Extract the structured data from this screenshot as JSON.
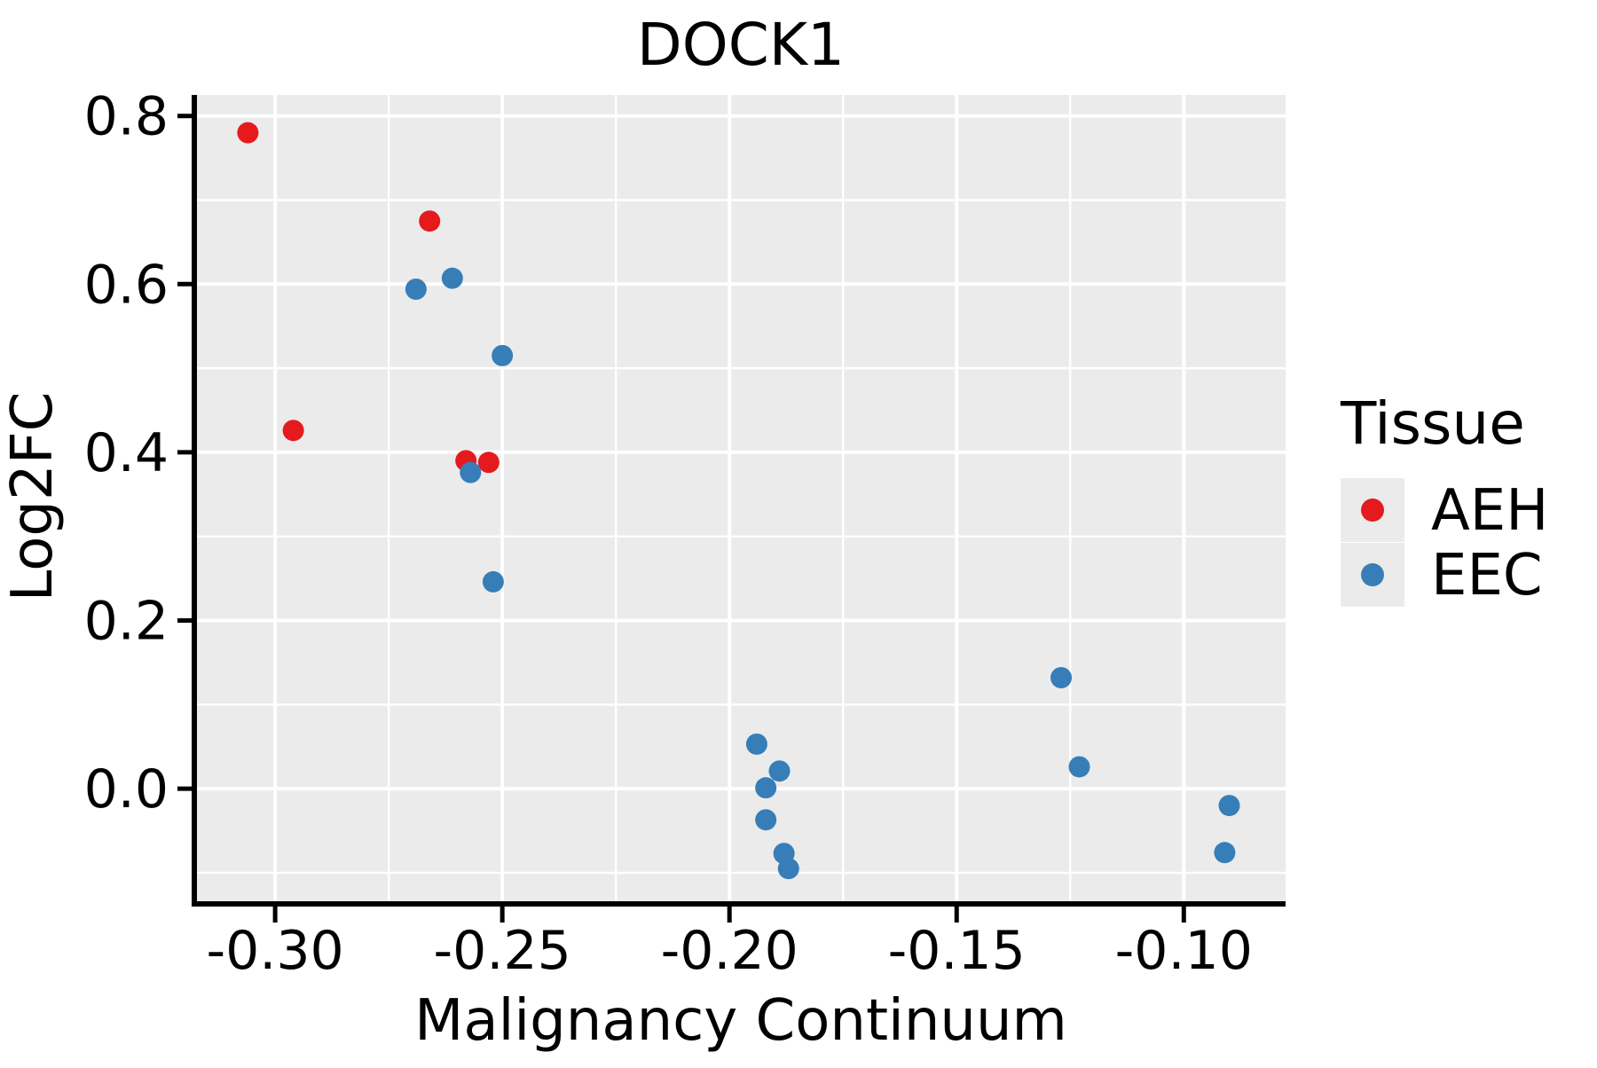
{
  "chart_data": {
    "type": "scatter",
    "title": "DOCK1",
    "xlabel": "Malignancy Continuum",
    "ylabel": "Log2FC",
    "xlim": [
      -0.3174,
      -0.0776
    ],
    "ylim": [
      -0.137,
      0.825
    ],
    "x_ticks": [
      -0.3,
      -0.25,
      -0.2,
      -0.15,
      -0.1
    ],
    "x_tick_labels": [
      "-0.30",
      "-0.25",
      "-0.20",
      "-0.15",
      "-0.10"
    ],
    "y_ticks": [
      0.0,
      0.2,
      0.4,
      0.6,
      0.8
    ],
    "y_tick_labels": [
      "0.0",
      "0.2",
      "0.4",
      "0.6",
      "0.8"
    ],
    "x_minor_ticks": [
      -0.275,
      -0.225,
      -0.175,
      -0.125
    ],
    "y_minor_ticks": [
      -0.1,
      0.1,
      0.3,
      0.5,
      0.7
    ],
    "grid": true,
    "panel_background": "#EBEBEB",
    "gridline_color": "#FFFFFF",
    "axis_color": "#000000",
    "marker_radius": 12,
    "legend": {
      "title": "Tissue",
      "position": "right",
      "key_background": "#EBEBEB",
      "entries": [
        {
          "label": "AEH",
          "color": "#E41A1C"
        },
        {
          "label": "EEC",
          "color": "#377EB8"
        }
      ]
    },
    "series": [
      {
        "name": "AEH",
        "color": "#E41A1C",
        "points": [
          [
            -0.306,
            0.78
          ],
          [
            -0.296,
            0.426
          ],
          [
            -0.266,
            0.675
          ],
          [
            -0.258,
            0.39
          ],
          [
            -0.253,
            0.388
          ]
        ]
      },
      {
        "name": "EEC",
        "color": "#377EB8",
        "points": [
          [
            -0.269,
            0.594
          ],
          [
            -0.261,
            0.607
          ],
          [
            -0.25,
            0.515
          ],
          [
            -0.257,
            0.376
          ],
          [
            -0.252,
            0.246
          ],
          [
            -0.194,
            0.053
          ],
          [
            -0.192,
            0.001
          ],
          [
            -0.192,
            -0.037
          ],
          [
            -0.189,
            0.021
          ],
          [
            -0.188,
            -0.077
          ],
          [
            -0.187,
            -0.095
          ],
          [
            -0.127,
            0.132
          ],
          [
            -0.123,
            0.026
          ],
          [
            -0.09,
            -0.02
          ],
          [
            -0.091,
            -0.076
          ]
        ]
      }
    ]
  }
}
